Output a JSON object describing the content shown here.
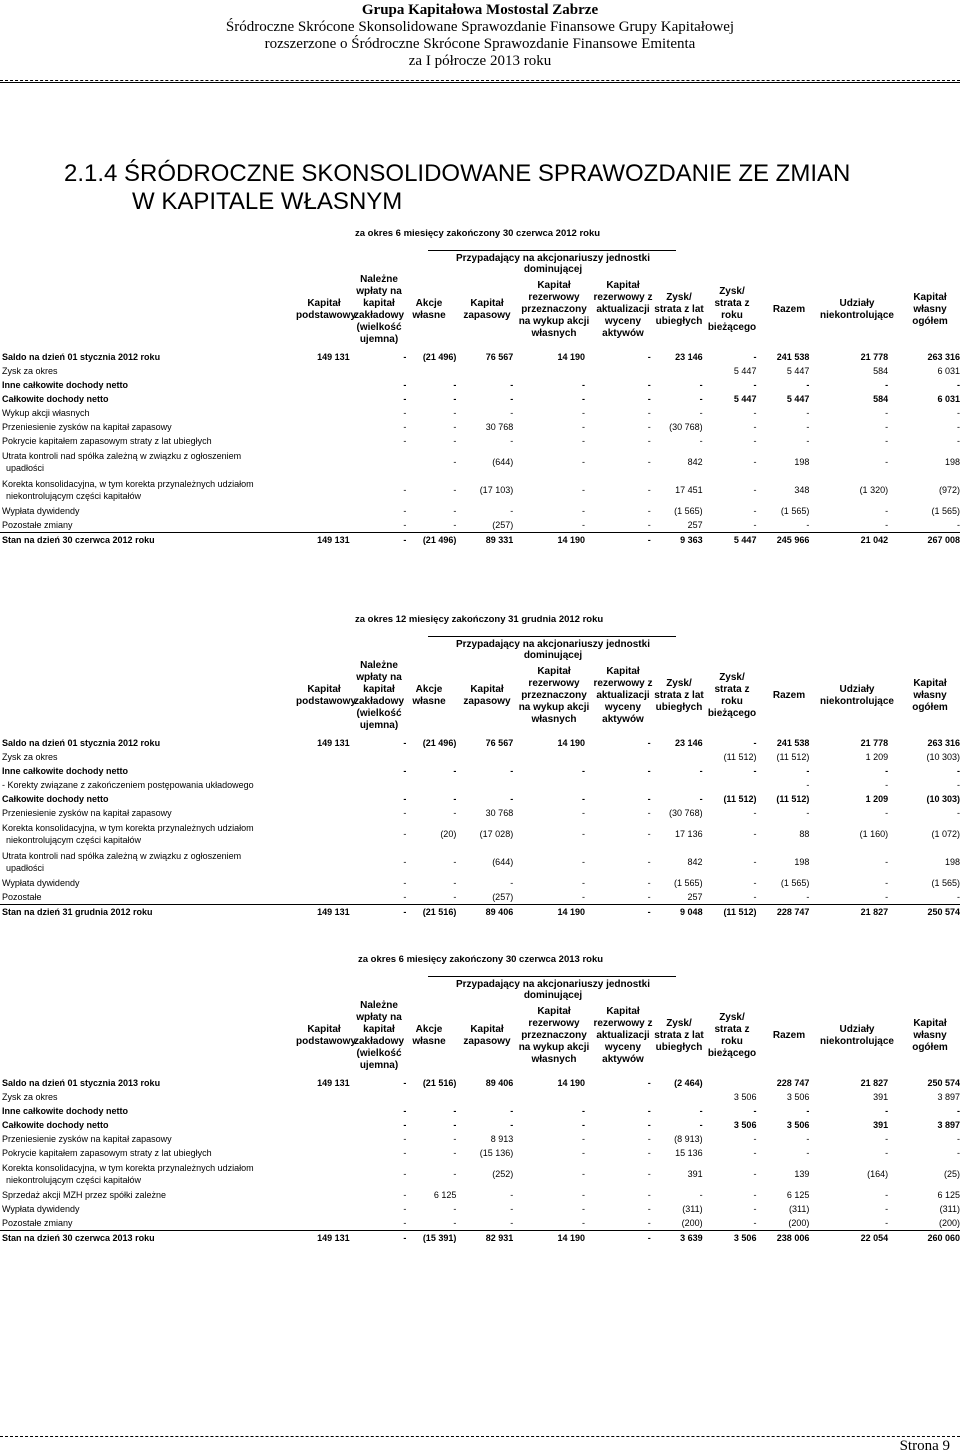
{
  "header": {
    "company": "Grupa Kapitałowa Mostostal Zabrze",
    "line2": "Śródroczne Skrócone Skonsolidowane Sprawozdanie Finansowe Grupy Kapitałowej",
    "line3": "rozszerzone o Śródroczne Skrócone Sprawozdanie Finansowe Emitenta",
    "line4": "za I półrocze 2013 roku"
  },
  "title": {
    "line1": "2.1.4 ŚRÓDROCZNE SKONSOLIDOWANE SPRAWOZDANIE ZE ZMIAN",
    "line2": "W KAPITALE WŁASNYM"
  },
  "group_header": "Przypadający na akcjonariuszy jednostki dominującej",
  "columns": [
    "Kapitał\npodstawowy",
    "Należne\nwpłaty na\nkapitał\nzakładowy\n(wielkość\nujemna)",
    "Akcje\nwłasne",
    "Kapitał\nzapasowy",
    "Kapitał\nrezerwowy\nprzeznaczony\nna wykup akcji\nwłasnych",
    "Kapitał\nrezerwowy z\naktualizacji\nwyceny\naktywów",
    "Zysk/\nstrata z lat\nubiegłych",
    "Zysk/\nstrata z\nroku\nbieżącego",
    "Razem",
    "Udziały\nniekontrolujące",
    "Kapitał\nwłasny\nogółem"
  ],
  "sections": [
    {
      "caption": "za okres 6 miesięcy zakończony 30 czerwca 2012 roku",
      "rows": [
        {
          "label": "Saldo na dzień 01 stycznia 2012 roku",
          "bold": true,
          "v": [
            "149 131",
            "-",
            "(21 496)",
            "76 567",
            "14 190",
            "-",
            "23 146",
            "-",
            "241 538",
            "21 778",
            "263 316"
          ]
        },
        {
          "label": "Zysk za okres",
          "v": [
            "",
            "",
            "",
            "",
            "",
            "",
            "",
            "5 447",
            "5 447",
            "584",
            "6 031"
          ]
        },
        {
          "label": "Inne całkowite dochody netto",
          "bold": true,
          "v": [
            "",
            "-",
            "-",
            "-",
            "-",
            "-",
            "-",
            "-",
            "-",
            "-",
            "-"
          ]
        },
        {
          "label": "Całkowite dochody netto",
          "bold": true,
          "v": [
            "",
            "-",
            "-",
            "-",
            "-",
            "-",
            "-",
            "5 447",
            "5 447",
            "584",
            "6 031"
          ]
        },
        {
          "label": "Wykup akcji własnych",
          "v": [
            "",
            "-",
            "-",
            "-",
            "-",
            "-",
            "-",
            "-",
            "-",
            "-",
            "-"
          ]
        },
        {
          "label": "Przeniesienie zysków na kapitał zapasowy",
          "v": [
            "",
            "-",
            "-",
            "30 768",
            "-",
            "-",
            "(30 768)",
            "-",
            "-",
            "-",
            "-"
          ]
        },
        {
          "label": "Pokrycie kapitałem zapasowym straty z lat ubiegłych",
          "v": [
            "",
            "-",
            "-",
            "-",
            "-",
            "-",
            "-",
            "-",
            "-",
            "-",
            "-"
          ]
        },
        {
          "label": "Utrata kontroli nad spółka zależną w związku z ogłoszeniem",
          "label2": "upadłości",
          "v": [
            "",
            "",
            "-",
            "(644)",
            "-",
            "-",
            "842",
            "-",
            "198",
            "-",
            "198"
          ]
        },
        {
          "label": "Korekta konsolidacyjna, w tym korekta przynależnych udziałom",
          "label2": "niekontrolującym części kapitałów",
          "v": [
            "",
            "-",
            "-",
            "(17 103)",
            "-",
            "-",
            "17 451",
            "-",
            "348",
            "(1 320)",
            "(972)"
          ]
        },
        {
          "label": "Wypłata dywidendy",
          "v": [
            "",
            "-",
            "-",
            "-",
            "-",
            "-",
            "(1 565)",
            "-",
            "(1 565)",
            "-",
            "(1 565)"
          ]
        },
        {
          "label": "Pozostałe zmiany",
          "v": [
            "",
            "-",
            "-",
            "(257)",
            "-",
            "-",
            "257",
            "-",
            "-",
            "-",
            "-"
          ]
        },
        {
          "label": "Stan na dzień 30 czerwca 2012 roku",
          "bold": true,
          "total": true,
          "v": [
            "149 131",
            "-",
            "(21 496)",
            "89 331",
            "14 190",
            "-",
            "9 363",
            "5 447",
            "245 966",
            "21 042",
            "267 008"
          ]
        }
      ]
    },
    {
      "caption": "za okres 12 miesięcy zakończony 31 grudnia 2012 roku",
      "rows": [
        {
          "label": "Saldo na dzień 01 stycznia 2012 roku",
          "bold": true,
          "v": [
            "149 131",
            "-",
            "(21 496)",
            "76 567",
            "14 190",
            "-",
            "23 146",
            "-",
            "241 538",
            "21 778",
            "263 316"
          ]
        },
        {
          "label": "Zysk za okres",
          "v": [
            "",
            "",
            "",
            "",
            "",
            "",
            "",
            "(11 512)",
            "(11 512)",
            "1 209",
            "(10 303)"
          ]
        },
        {
          "label": "Inne całkowite dochody netto",
          "bold": true,
          "v": [
            "",
            "-",
            "-",
            "-",
            "-",
            "-",
            "-",
            "-",
            "-",
            "-",
            "-"
          ]
        },
        {
          "label": "- Korekty związane z zakończeniem postępowania układowego",
          "v": [
            "",
            "",
            "",
            "",
            "",
            "",
            "",
            "",
            "-",
            "-",
            "-"
          ]
        },
        {
          "label": "Całkowite dochody netto",
          "bold": true,
          "v": [
            "",
            "-",
            "-",
            "-",
            "-",
            "-",
            "-",
            "(11 512)",
            "(11 512)",
            "1 209",
            "(10 303)"
          ]
        },
        {
          "label": "Przeniesienie zysków na kapitał zapasowy",
          "v": [
            "",
            "-",
            "-",
            "30 768",
            "-",
            "-",
            "(30 768)",
            "-",
            "-",
            "-",
            "-"
          ]
        },
        {
          "label": "Korekta konsolidacyjna, w tym korekta przynależnych udziałom",
          "label2": "niekontrolującym części kapitałów",
          "v": [
            "",
            "-",
            "(20)",
            "(17 028)",
            "-",
            "-",
            "17 136",
            "-",
            "88",
            "(1 160)",
            "(1 072)"
          ]
        },
        {
          "label": "Utrata kontroli nad spółka zależną w związku z ogłoszeniem",
          "label2": "upadłości",
          "v": [
            "",
            "-",
            "-",
            "(644)",
            "-",
            "-",
            "842",
            "-",
            "198",
            "-",
            "198"
          ]
        },
        {
          "label": "Wypłata dywidendy",
          "v": [
            "",
            "-",
            "-",
            "-",
            "-",
            "-",
            "(1 565)",
            "-",
            "(1 565)",
            "-",
            "(1 565)"
          ]
        },
        {
          "label": "Pozostałe",
          "v": [
            "",
            "-",
            "-",
            "(257)",
            "-",
            "-",
            "257",
            "-",
            "-",
            "-",
            "-"
          ]
        },
        {
          "label": "Stan na dzień 31 grudnia 2012 roku",
          "bold": true,
          "total": true,
          "v": [
            "149 131",
            "-",
            "(21 516)",
            "89 406",
            "14 190",
            "-",
            "9 048",
            "(11 512)",
            "228 747",
            "21 827",
            "250 574"
          ]
        }
      ]
    },
    {
      "caption": "za okres 6 miesięcy zakończony 30 czerwca 2013 roku",
      "rows": [
        {
          "label": "Saldo na dzień 01 stycznia 2013 roku",
          "bold": true,
          "v": [
            "149 131",
            "-",
            "(21 516)",
            "89 406",
            "14 190",
            "-",
            "(2 464)",
            "",
            "228 747",
            "21 827",
            "250 574"
          ]
        },
        {
          "label": "Zysk za okres",
          "v": [
            "",
            "",
            "",
            "",
            "",
            "",
            "",
            "3 506",
            "3 506",
            "391",
            "3 897"
          ]
        },
        {
          "label": "Inne całkowite dochody netto",
          "bold": true,
          "v": [
            "",
            "-",
            "-",
            "-",
            "-",
            "-",
            "-",
            "-",
            "-",
            "-",
            "-"
          ]
        },
        {
          "label": "Całkowite dochody netto",
          "bold": true,
          "v": [
            "",
            "-",
            "-",
            "-",
            "-",
            "-",
            "-",
            "3 506",
            "3 506",
            "391",
            "3 897"
          ]
        },
        {
          "label": "Przeniesienie zysków na kapitał zapasowy",
          "v": [
            "",
            "-",
            "-",
            "8 913",
            "-",
            "-",
            "(8 913)",
            "-",
            "-",
            "-",
            "-"
          ]
        },
        {
          "label": "Pokrycie kapitałem zapasowym straty z lat ubiegłych",
          "v": [
            "",
            "-",
            "-",
            "(15 136)",
            "-",
            "-",
            "15 136",
            "-",
            "-",
            "-",
            "-"
          ]
        },
        {
          "label": "Korekta konsolidacyjna, w tym korekta przynależnych udziałom",
          "label2": "niekontrolującym części kapitałów",
          "v": [
            "",
            "-",
            "-",
            "(252)",
            "-",
            "-",
            "391",
            "-",
            "139",
            "(164)",
            "(25)"
          ]
        },
        {
          "label": "Sprzedaż akcji MZH przez spółki zależne",
          "v": [
            "",
            "-",
            "6 125",
            "-",
            "-",
            "-",
            "-",
            "-",
            "6 125",
            "-",
            "6 125"
          ]
        },
        {
          "label": "Wypłata dywidendy",
          "v": [
            "",
            "-",
            "-",
            "-",
            "-",
            "-",
            "(311)",
            "-",
            "(311)",
            "-",
            "(311)"
          ]
        },
        {
          "label": "Pozostałe zmiany",
          "v": [
            "",
            "-",
            "-",
            "-",
            "-",
            "-",
            "(200)",
            "-",
            "(200)",
            "-",
            "(200)"
          ]
        },
        {
          "label": "Stan na dzień 30 czerwca 2013 roku",
          "bold": true,
          "total": true,
          "v": [
            "149 131",
            "-",
            "(15 391)",
            "82 931",
            "14 190",
            "-",
            "3 639",
            "3 506",
            "238 006",
            "22 054",
            "260 060"
          ]
        }
      ]
    }
  ],
  "footer": {
    "page": "Strona 9"
  }
}
